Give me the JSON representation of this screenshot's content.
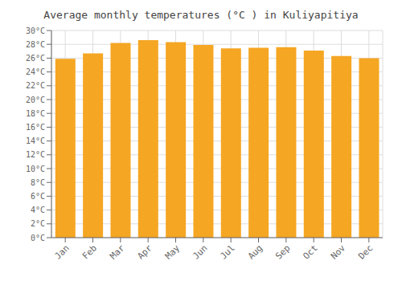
{
  "chart_data": {
    "type": "bar",
    "title": "Average monthly temperatures (°C ) in Kuliyapitiya",
    "categories": [
      "Jan",
      "Feb",
      "Mar",
      "Apr",
      "May",
      "Jun",
      "Jul",
      "Aug",
      "Sep",
      "Oct",
      "Nov",
      "Dec"
    ],
    "values": [
      25.9,
      26.7,
      28.2,
      28.6,
      28.3,
      27.9,
      27.4,
      27.5,
      27.6,
      27.1,
      26.3,
      26.0
    ],
    "color": "#F5A623",
    "ylim": [
      0,
      30
    ],
    "yticks": [
      {
        "value": 0,
        "label": "0°C"
      },
      {
        "value": 2,
        "label": "2°C"
      },
      {
        "value": 4,
        "label": "4°C"
      },
      {
        "value": 6,
        "label": "6°C"
      },
      {
        "value": 8,
        "label": "8°C"
      },
      {
        "value": 10,
        "label": "10°C"
      },
      {
        "value": 12,
        "label": "12°C"
      },
      {
        "value": 14,
        "label": "14°C"
      },
      {
        "value": 16,
        "label": "16°C"
      },
      {
        "value": 18,
        "label": "18°C"
      },
      {
        "value": 20,
        "label": "20°C"
      },
      {
        "value": 22,
        "label": "22°C"
      },
      {
        "value": 24,
        "label": "24°C"
      },
      {
        "value": 26,
        "label": "26°C"
      },
      {
        "value": 28,
        "label": "28°C"
      },
      {
        "value": 30,
        "label": "30°C"
      }
    ],
    "grid": true
  }
}
